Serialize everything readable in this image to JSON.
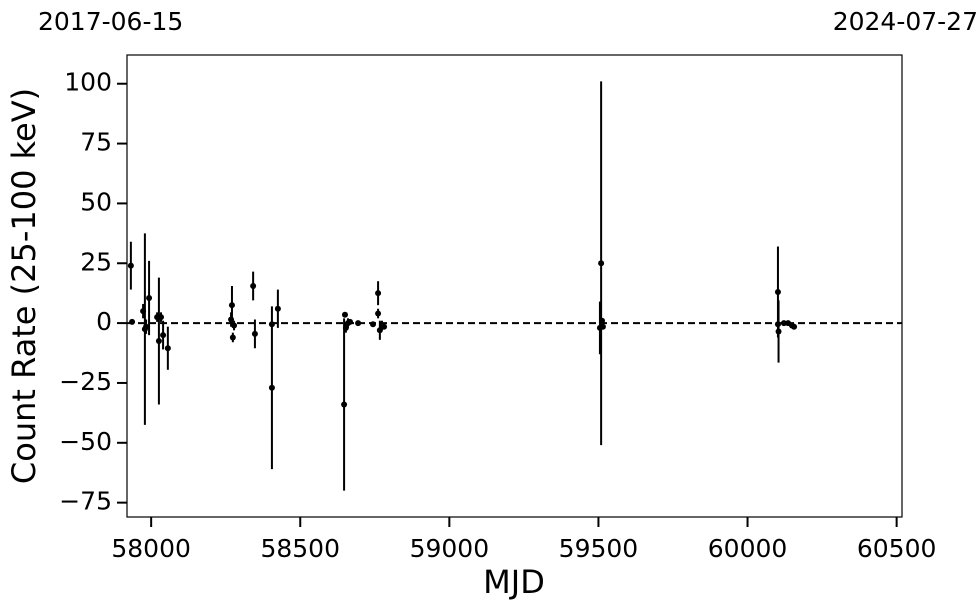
{
  "chart_data": {
    "type": "errorbar",
    "top_labels": [
      "2017-06-15",
      "2024-07-27"
    ],
    "x_label": "MJD",
    "y_label": "Count Rate (25-100 keV)",
    "xlim": [
      57919,
      60518
    ],
    "ylim": [
      -81,
      112
    ],
    "xticks": [
      58000,
      58500,
      59000,
      59500,
      60000,
      60500
    ],
    "yticks": [
      {
        "value": -75,
        "label": "−75"
      },
      {
        "value": -50,
        "label": "−50"
      },
      {
        "value": -25,
        "label": "−25"
      },
      0,
      25,
      50,
      75,
      100
    ],
    "hline": 0,
    "color": "#000000",
    "x": [
      57932,
      57936,
      57973,
      57979,
      57983,
      57993,
      58020,
      58026,
      58033,
      58040,
      58056,
      58268,
      58271,
      58274,
      58278,
      58342,
      58348,
      58405,
      58405,
      58425,
      58647,
      58650,
      58653,
      58660,
      58667,
      58694,
      58744,
      58761,
      58761,
      58767,
      58774,
      58781,
      59505,
      59509,
      59512,
      59515,
      60102,
      60102,
      60104,
      60122,
      60136,
      60149,
      60156
    ],
    "values": [
      24,
      0.5,
      5,
      -2.5,
      -1.5,
      10.5,
      2.5,
      -7.5,
      2.5,
      -5,
      -10.5,
      1.5,
      7.5,
      -6,
      -1,
      15.5,
      -4.5,
      -27,
      -0.5,
      6,
      -34,
      3.5,
      -2,
      0,
      0.5,
      0,
      -0.5,
      12.5,
      4,
      -3,
      -1,
      -1.5,
      -2,
      25,
      1,
      -1.5,
      13,
      -0.5,
      -3.5,
      0,
      0,
      -1,
      -1.5
    ],
    "errors": [
      10,
      0.5,
      3,
      40,
      3,
      15.5,
      2,
      26.5,
      2,
      6,
      9,
      3,
      8,
      2,
      2,
      6,
      6,
      34,
      1,
      8,
      36,
      1,
      2,
      2,
      1,
      1,
      1,
      5,
      2,
      4,
      2,
      1,
      11,
      76,
      1,
      1,
      19,
      1,
      13,
      1,
      1,
      1,
      1
    ]
  }
}
